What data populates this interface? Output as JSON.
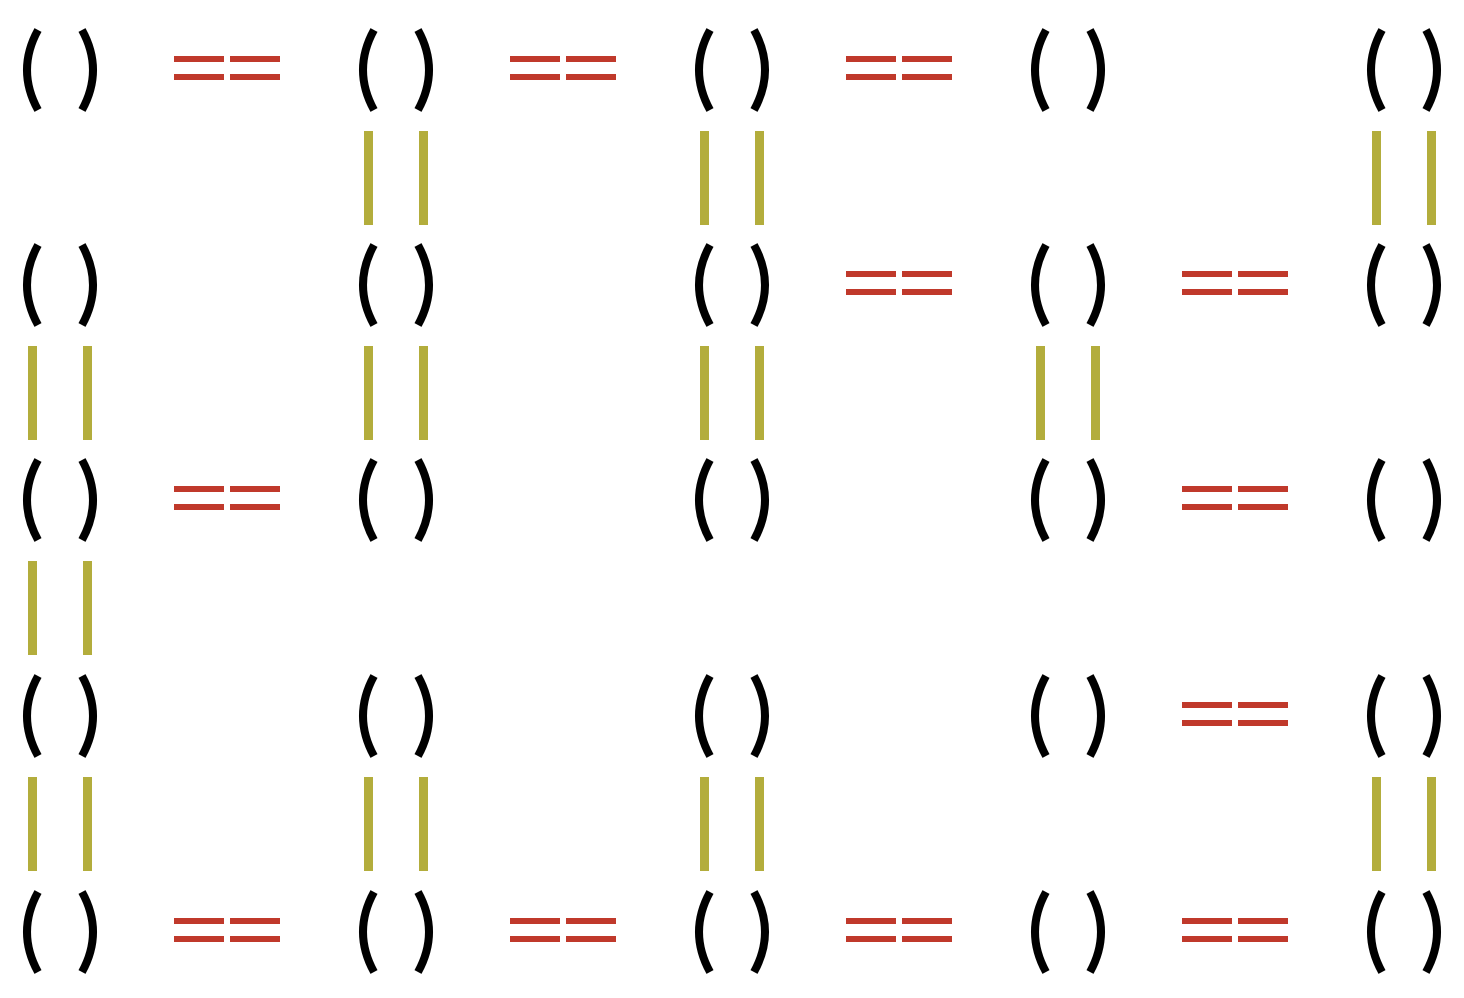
{
  "colors": {
    "node": "#000000",
    "horizontal_link": "#c0392b",
    "vertical_link": "#b3ad3c",
    "background": "#ffffff"
  },
  "grid": {
    "rows": 5,
    "cols": 5,
    "horizontal_links": [
      [
        true,
        true,
        true,
        false
      ],
      [
        false,
        false,
        true,
        true
      ],
      [
        true,
        false,
        false,
        true
      ],
      [
        false,
        false,
        false,
        true
      ],
      [
        true,
        true,
        true,
        true
      ]
    ],
    "vertical_links": [
      [
        false,
        true,
        true,
        false,
        true
      ],
      [
        true,
        true,
        true,
        true,
        false
      ],
      [
        true,
        false,
        false,
        false,
        false
      ],
      [
        true,
        true,
        true,
        false,
        true
      ]
    ]
  }
}
